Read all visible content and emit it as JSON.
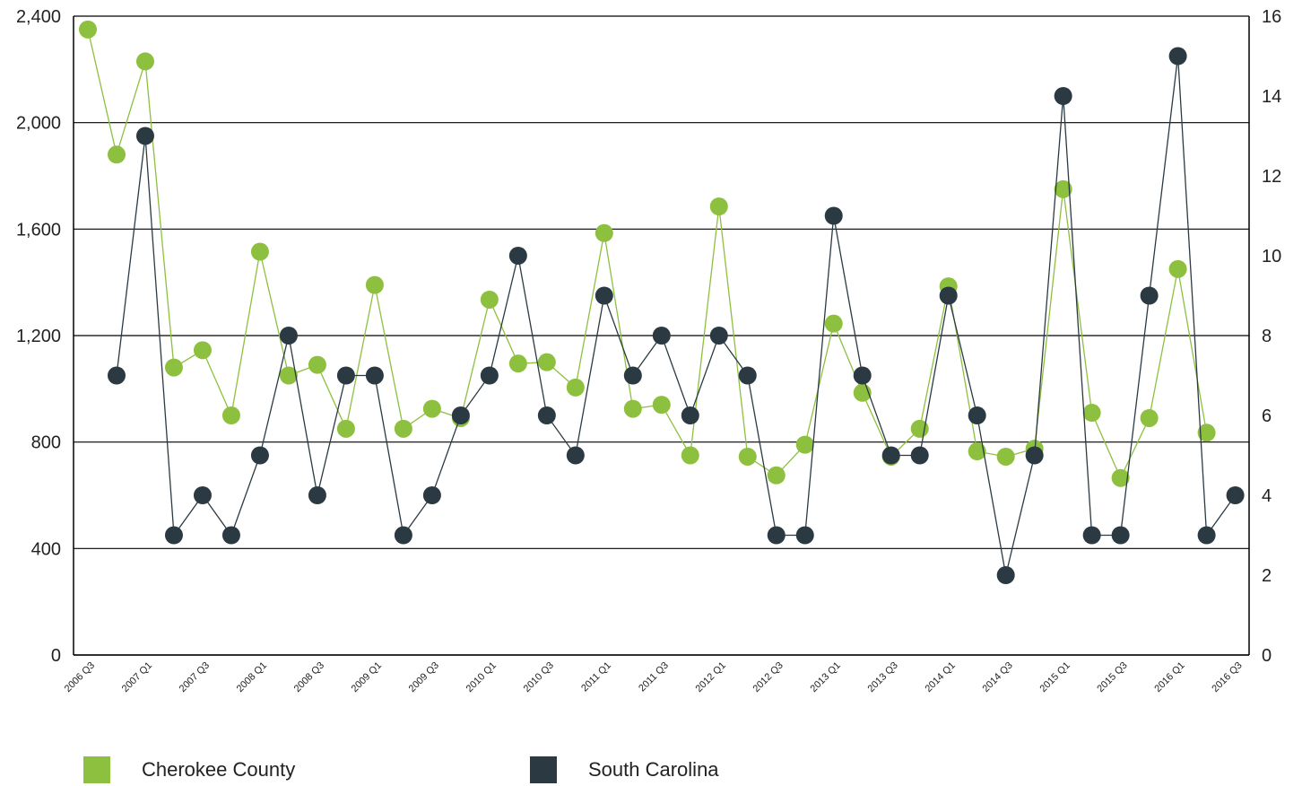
{
  "chart_data": {
    "type": "line",
    "categories": [
      "2006 Q3",
      "2006 Q4",
      "2007 Q1",
      "2007 Q2",
      "2007 Q3",
      "2007 Q4",
      "2008 Q1",
      "2008 Q2",
      "2008 Q3",
      "2008 Q4",
      "2009 Q1",
      "2009 Q2",
      "2009 Q3",
      "2009 Q4",
      "2010 Q1",
      "2010 Q2",
      "2010 Q3",
      "2010 Q4",
      "2011 Q1",
      "2011 Q2",
      "2011 Q3",
      "2011 Q4",
      "2012 Q1",
      "2012 Q2",
      "2012 Q3",
      "2012 Q4",
      "2013 Q1",
      "2013 Q2",
      "2013 Q3",
      "2013 Q4",
      "2014 Q1",
      "2014 Q2",
      "2014 Q3",
      "2014 Q4",
      "2015 Q1",
      "2015 Q2",
      "2015 Q3",
      "2015 Q4",
      "2016 Q1",
      "2016 Q2",
      "2016 Q3"
    ],
    "tick_labels": [
      "2006 Q3",
      "2007 Q1",
      "2007 Q3",
      "2008 Q1",
      "2008 Q3",
      "2009 Q1",
      "2009 Q3",
      "2010 Q1",
      "2010 Q3",
      "2011 Q1",
      "2011 Q3",
      "2012 Q1",
      "2012 Q3",
      "2013 Q1",
      "2013 Q3",
      "2014 Q1",
      "2014 Q3",
      "2015 Q1",
      "2015 Q3",
      "2016 Q1",
      "2016 Q3"
    ],
    "y_left_ticks": [
      "0",
      "400",
      "800",
      "1,200",
      "1,600",
      "2,000",
      "2,400"
    ],
    "y_right_ticks": [
      "0",
      "2",
      "4",
      "6",
      "8",
      "10",
      "12",
      "14",
      "16"
    ],
    "ylim_left": [
      0,
      2400
    ],
    "ylim_right": [
      0,
      16
    ],
    "grid": "horizontal",
    "legend_position": "bottom",
    "series": [
      {
        "name": "Cherokee County",
        "axis": "left",
        "color": "#8dc03f",
        "values": [
          2350,
          1880,
          2230,
          1080,
          1145,
          900,
          1515,
          1050,
          1090,
          850,
          1390,
          850,
          925,
          890,
          1335,
          1095,
          1100,
          1005,
          1585,
          925,
          940,
          750,
          1685,
          745,
          675,
          790,
          1245,
          985,
          745,
          850,
          1385,
          765,
          745,
          775,
          1750,
          910,
          665,
          890,
          1450,
          835,
          null
        ]
      },
      {
        "name": "South Carolina",
        "axis": "right",
        "color": "#2b3a42",
        "values": [
          null,
          7,
          13,
          3,
          4,
          3,
          5,
          8,
          4,
          7,
          7,
          3,
          4,
          6,
          7,
          10,
          6,
          5,
          9,
          7,
          8,
          6,
          8,
          7,
          3,
          3,
          11,
          7,
          5,
          5,
          9,
          6,
          2,
          5,
          14,
          3,
          3,
          9,
          15,
          3,
          4
        ]
      }
    ]
  }
}
